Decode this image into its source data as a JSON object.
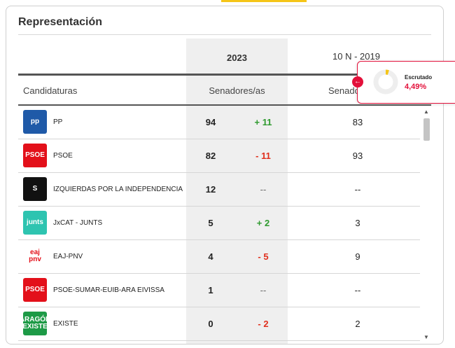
{
  "section": {
    "title": "Representación"
  },
  "columns": {
    "year_current": "2023",
    "year_previous": "10 N - 2019",
    "candidacies": "Candidaturas",
    "senators": "Senadores/as",
    "senators_prev": "Senado"
  },
  "rows": [
    {
      "party": "PP",
      "logo_text": "pp",
      "logo_color": "#1f5aa8",
      "seats": "94",
      "diff": "+ 11",
      "diff_type": "pos",
      "prev": "83"
    },
    {
      "party": "PSOE",
      "logo_text": "PSOE",
      "logo_color": "#e3101a",
      "seats": "82",
      "diff": "- 11",
      "diff_type": "neg",
      "prev": "93"
    },
    {
      "party": "IZQUIERDAS POR LA INDEPENDENCIA",
      "logo_text": "S",
      "logo_color": "#111111",
      "seats": "12",
      "diff": "--",
      "diff_type": "none",
      "prev": "--"
    },
    {
      "party": "JxCAT - JUNTS",
      "logo_text": "junts",
      "logo_color": "#2ec4b0",
      "seats": "5",
      "diff": "+ 2",
      "diff_type": "pos",
      "prev": "3"
    },
    {
      "party": "EAJ-PNV",
      "logo_text": "eaj pnv",
      "logo_color": "#ffffff",
      "seats": "4",
      "diff": "- 5",
      "diff_type": "neg",
      "prev": "9"
    },
    {
      "party": "PSOE-SUMAR-EUIB-ARA EIVISSA",
      "logo_text": "PSOE",
      "logo_color": "#e3101a",
      "seats": "1",
      "diff": "--",
      "diff_type": "none",
      "prev": "--"
    },
    {
      "party": "EXISTE",
      "logo_text": "ARAGÓN EXISTE",
      "logo_color": "#1d9a46",
      "seats": "0",
      "diff": "- 2",
      "diff_type": "neg",
      "prev": "2"
    }
  ],
  "scrutiny": {
    "label": "Escrutado",
    "value": "4,49%",
    "fraction": 0.0449,
    "color": "#e3103a",
    "ring_color": "#f5c518"
  }
}
